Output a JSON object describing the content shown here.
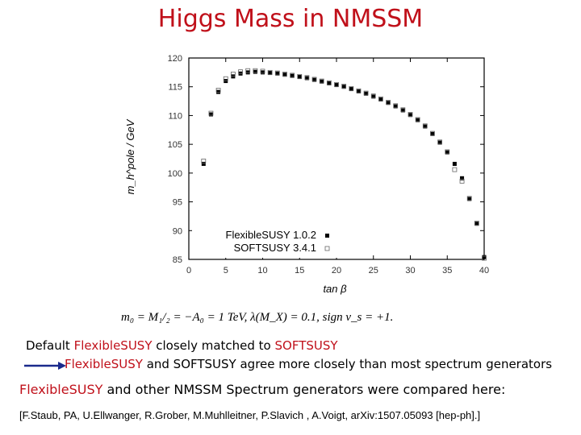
{
  "header": {
    "title": "Higgs Mass in NMSSM"
  },
  "chart_data": {
    "type": "scatter",
    "xlabel": "tan β",
    "ylabel": "m_h^pole / GeV",
    "xlim": [
      0,
      40
    ],
    "ylim": [
      85,
      120
    ],
    "xticks": [
      0,
      5,
      10,
      15,
      20,
      25,
      30,
      35,
      40
    ],
    "yticks": [
      85,
      90,
      95,
      100,
      105,
      110,
      115,
      120
    ],
    "legend_position": "bottom-left",
    "series": [
      {
        "name": "FlexibleSUSY 1.0.2",
        "marker": "filled-square",
        "x": [
          2,
          3,
          4,
          5,
          6,
          7,
          8,
          9,
          10,
          11,
          12,
          13,
          14,
          15,
          16,
          17,
          18,
          19,
          20,
          21,
          22,
          23,
          24,
          25,
          26,
          27,
          28,
          29,
          30,
          31,
          32,
          33,
          34,
          35,
          36,
          37,
          38,
          39,
          40
        ],
        "values": [
          101.6,
          110.2,
          114.1,
          116.0,
          116.8,
          117.3,
          117.5,
          117.6,
          117.5,
          117.4,
          117.3,
          117.1,
          116.9,
          116.7,
          116.5,
          116.2,
          115.9,
          115.6,
          115.3,
          115.0,
          114.6,
          114.2,
          113.8,
          113.3,
          112.8,
          112.2,
          111.6,
          110.9,
          110.1,
          109.2,
          108.1,
          106.8,
          105.3,
          103.6,
          101.6,
          99.1,
          95.5,
          91.2,
          85.4
        ]
      },
      {
        "name": "SOFTSUSY 3.4.1",
        "marker": "open-square",
        "x": [
          2,
          3,
          4,
          5,
          6,
          7,
          8,
          9,
          10,
          11,
          12,
          13,
          14,
          15,
          16,
          17,
          18,
          19,
          20,
          21,
          22,
          23,
          24,
          25,
          26,
          27,
          28,
          29,
          30,
          31,
          32,
          33,
          34,
          35,
          36,
          37,
          38,
          39,
          40
        ],
        "values": [
          102.1,
          110.4,
          114.4,
          116.4,
          117.2,
          117.6,
          117.8,
          117.8,
          117.7,
          117.5,
          117.4,
          117.2,
          117.0,
          116.8,
          116.6,
          116.3,
          116.0,
          115.7,
          115.4,
          115.1,
          114.7,
          114.3,
          113.9,
          113.4,
          112.9,
          112.3,
          111.7,
          111.0,
          110.2,
          109.3,
          108.2,
          106.9,
          105.4,
          103.7,
          100.6,
          98.6,
          95.6,
          91.3,
          85.2
        ]
      }
    ]
  },
  "formula": {
    "text": "m₀ = M₁/₂ = −A₀ = 1 TeV, λ(M_X) = 0.1, sign v_s = +1."
  },
  "notes": {
    "line1_prefix": "Default ",
    "line1_fs": "FlexibleSUSY",
    "line1_mid": " closely matched to ",
    "line1_ss": "SOFTSUSY",
    "line2_fs": "FlexibleSUSY",
    "line2_rest": " and SOFTSUSY agree more closely than most spectrum generators",
    "line3_fs": "FlexibleSUSY",
    "line3_rest": " and other NMSSM Spectrum generators were compared here:",
    "reference": "[F.Staub, PA, U.Ellwanger, R.Grober, M.Muhlleitner, P.Slavich , A.Voigt,  arXiv:1507.05093 [hep-ph].]"
  },
  "colors": {
    "accent": "#c0101a",
    "arrow": "#1a2a8c",
    "text": "#000000"
  }
}
